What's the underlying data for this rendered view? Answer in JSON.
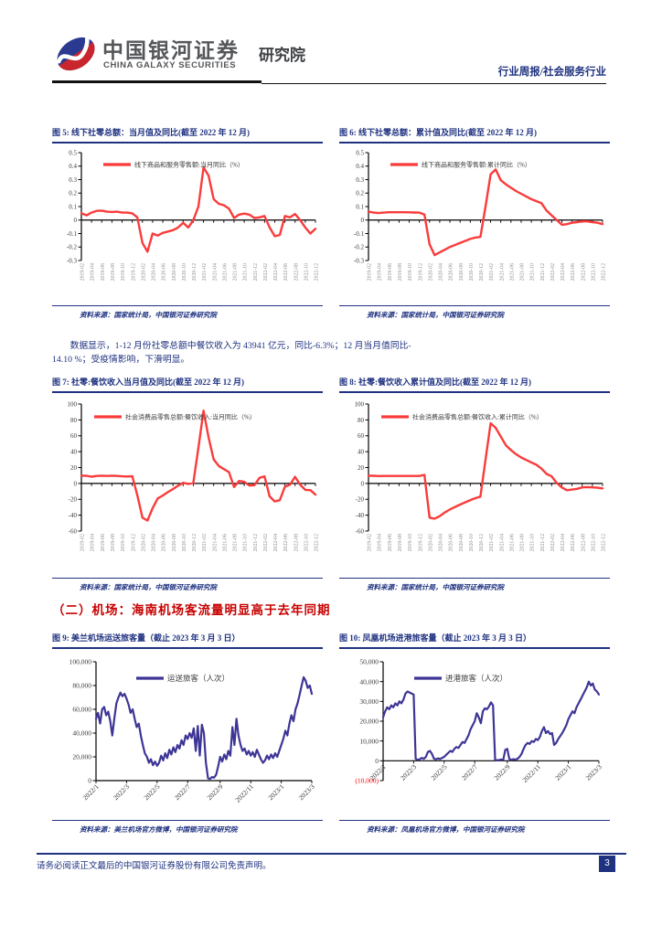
{
  "header": {
    "brand_cn": "中国银河证券",
    "brand_en": "CHINA GALAXY SECURITIES",
    "brand_suffix": "研究院",
    "report_type": "行业周报/社会服务行业"
  },
  "paragraph": {
    "lines": [
      "数据显示，1-12 月份社零总额中餐饮收入为 43941 亿元，同比-6.3%；12 月当月值同比-",
      "14.10 %；受疫情影响，下滑明显。"
    ]
  },
  "section_heading": "（二）机场：海南机场客流量明显高于去年同期",
  "footer": {
    "disclaimer": "请务必阅读正文最后的中国银河证券股份有限公司免责声明。",
    "page_number": "3"
  },
  "colors": {
    "navy": "#1F3280",
    "heading_red": "#C80000",
    "red_line": "#FA3B3B",
    "blue_line": "#3D3595",
    "axis_gray": "#8a8a8a"
  },
  "chart_data": [
    {
      "type": "line",
      "title": "图 5: 线下社零总额：当月值及同比(截至 2022 年 12 月)",
      "legend": "线下商品和服务零售额:当月同比（%）",
      "source": "资料来源：国家统计局，中国银河证券研究院",
      "line_color": "#FA3B3B",
      "ylim": [
        -0.3,
        0.5
      ],
      "y_ticks": [
        {
          "label": "0.5",
          "value": 0.5
        },
        {
          "label": "0.4",
          "value": 0.4
        },
        {
          "label": "0.3",
          "value": 0.3
        },
        {
          "label": "0.2",
          "value": 0.2
        },
        {
          "label": "0.1",
          "value": 0.1
        },
        {
          "label": "0",
          "value": 0
        },
        {
          "label": "-0.1",
          "value": -0.1
        },
        {
          "label": "-0.2",
          "value": -0.2
        },
        {
          "label": "-0.3",
          "value": -0.3
        }
      ],
      "x_ticks": {
        "labels": [
          "2019-02",
          "2019-04",
          "2019-06",
          "2019-08",
          "2019-10",
          "2019-12",
          "2020-02",
          "2020-04",
          "2020-06",
          "2020-08",
          "2020-10",
          "2020-12",
          "2021-02",
          "2021-04",
          "2021-06",
          "2021-08",
          "2021-10",
          "2021-12",
          "2022-02",
          "2022-04",
          "2022-06",
          "2022-08",
          "2022-10",
          "2022-12"
        ],
        "indices": [
          0,
          2,
          4,
          6,
          8,
          10,
          12,
          14,
          16,
          18,
          20,
          22,
          24,
          26,
          28,
          30,
          32,
          34,
          36,
          38,
          40,
          42,
          44,
          46
        ]
      },
      "x_range": "monthly 2019-02 to 2022-12",
      "values": [
        0.051,
        0.035,
        0.055,
        0.068,
        0.07,
        0.062,
        0.06,
        0.062,
        0.055,
        0.055,
        0.05,
        0.02,
        -0.17,
        -0.235,
        -0.1,
        -0.115,
        -0.095,
        -0.085,
        -0.075,
        -0.055,
        -0.02,
        -0.055,
        0.0,
        0.1,
        0.39,
        0.33,
        0.155,
        0.12,
        0.11,
        0.085,
        0.015,
        0.04,
        0.048,
        0.04,
        0.015,
        0.02,
        0.03,
        -0.055,
        -0.12,
        -0.11,
        0.03,
        0.02,
        0.045,
        0.0,
        -0.055,
        -0.1,
        -0.065
      ]
    },
    {
      "type": "line",
      "title": "图 6: 线下社零总额：累计值及同比(截至 2022 年 12 月)",
      "legend": "线下商品和服务零售额:累计同比（%）",
      "source": "资料来源：国家统计局，中国银河证券研究院",
      "line_color": "#FA3B3B",
      "ylim": [
        -0.3,
        0.5
      ],
      "y_ticks": [
        {
          "label": "0.5",
          "value": 0.5
        },
        {
          "label": "0.4",
          "value": 0.4
        },
        {
          "label": "0.3",
          "value": 0.3
        },
        {
          "label": "0.2",
          "value": 0.2
        },
        {
          "label": "0.1",
          "value": 0.1
        },
        {
          "label": "0",
          "value": 0
        },
        {
          "label": "-0.1",
          "value": -0.1
        },
        {
          "label": "-0.2",
          "value": -0.2
        },
        {
          "label": "-0.3",
          "value": -0.3
        }
      ],
      "x_ticks": {
        "labels": [
          "2019-02",
          "2019-04",
          "2019-06",
          "2019-08",
          "2019-10",
          "2019-12",
          "2020-02",
          "2020-04",
          "2020-06",
          "2020-08",
          "2020-10",
          "2020-12",
          "2021-02",
          "2021-04",
          "2021-06",
          "2021-08",
          "2021-10",
          "2021-12",
          "2022-02",
          "2022-04",
          "2022-06",
          "2022-08",
          "2022-10",
          "2022-12"
        ],
        "indices": [
          0,
          2,
          4,
          6,
          8,
          10,
          12,
          14,
          16,
          18,
          20,
          22,
          24,
          26,
          28,
          30,
          32,
          34,
          36,
          38,
          40,
          42,
          44,
          46
        ]
      },
      "x_range": "monthly 2019-02 to 2022-12",
      "values": [
        0.062,
        0.055,
        0.052,
        0.055,
        0.058,
        0.058,
        0.058,
        0.058,
        0.057,
        0.056,
        0.055,
        0.04,
        -0.18,
        -0.26,
        -0.24,
        -0.22,
        -0.2,
        -0.185,
        -0.17,
        -0.155,
        -0.14,
        -0.13,
        -0.125,
        0.1,
        0.34,
        0.375,
        0.295,
        0.265,
        0.24,
        0.215,
        0.195,
        0.175,
        0.155,
        0.14,
        0.125,
        0.07,
        0.035,
        0.0,
        -0.035,
        -0.03,
        -0.02,
        -0.015,
        -0.01,
        -0.01,
        -0.015,
        -0.02,
        -0.03
      ]
    },
    {
      "type": "line",
      "title": "图 7: 社零:餐饮收入当月值及同比(截至 2022 年 12 月)",
      "legend": "社会消费品零售总额:餐饮收入:当月同比（%）",
      "source": "资料来源：国家统计局，中国银河证券研究院",
      "line_color": "#FA3B3B",
      "ylim": [
        -60,
        100
      ],
      "y_ticks": [
        {
          "label": "100",
          "value": 100
        },
        {
          "label": "80",
          "value": 80
        },
        {
          "label": "60",
          "value": 60
        },
        {
          "label": "40",
          "value": 40
        },
        {
          "label": "20",
          "value": 20
        },
        {
          "label": "0",
          "value": 0
        },
        {
          "label": "-20",
          "value": -20
        },
        {
          "label": "-40",
          "value": -40
        },
        {
          "label": "-60",
          "value": -60
        }
      ],
      "x_ticks": {
        "labels": [
          "2019-02",
          "2019-04",
          "2019-06",
          "2019-08",
          "2019-10",
          "2019-12",
          "2020-02",
          "2020-04",
          "2020-06",
          "2020-08",
          "2020-10",
          "2020-12",
          "2021-02",
          "2021-04",
          "2021-06",
          "2021-08",
          "2021-10",
          "2021-12",
          "2022-02",
          "2022-04",
          "2022-06",
          "2022-08",
          "2022-10",
          "2022-12"
        ],
        "indices": [
          0,
          2,
          4,
          6,
          8,
          10,
          12,
          14,
          16,
          18,
          20,
          22,
          24,
          26,
          28,
          30,
          32,
          34,
          36,
          38,
          40,
          42,
          44,
          46
        ]
      },
      "x_range": "monthly 2019-02 to 2022-12",
      "values": [
        9.7,
        9.6,
        8.5,
        9.4,
        9.8,
        9.4,
        9.7,
        9.4,
        9.0,
        8.7,
        9.1,
        -15,
        -43.1,
        -46.8,
        -31.1,
        -18.9,
        -15.2,
        -11.0,
        -7.0,
        -2.9,
        0.8,
        -0.6,
        0.4,
        45,
        91.6,
        58,
        30.3,
        22,
        18,
        14.3,
        -4.5,
        3.1,
        2.0,
        -2.7,
        -2.2,
        7,
        8.9,
        -16.4,
        -22.7,
        -21.1,
        -4.0,
        -1.5,
        8.4,
        -1.7,
        -8.1,
        -8.4,
        -14.1
      ]
    },
    {
      "type": "line",
      "title": "图 8: 社零:餐饮收入累计值及同比(截至 2022 年 12 月)",
      "legend": "社会消费品零售总额:餐饮收入:累计同比（%）",
      "source": "资料来源：国家统计局，中国银河证券研究院",
      "line_color": "#FA3B3B",
      "ylim": [
        -60,
        100
      ],
      "y_ticks": [
        {
          "label": "100",
          "value": 100
        },
        {
          "label": "80",
          "value": 80
        },
        {
          "label": "60",
          "value": 60
        },
        {
          "label": "40",
          "value": 40
        },
        {
          "label": "20",
          "value": 20
        },
        {
          "label": "0",
          "value": 0
        },
        {
          "label": "-20",
          "value": -20
        },
        {
          "label": "-40",
          "value": -40
        },
        {
          "label": "-60",
          "value": -60
        }
      ],
      "x_ticks": {
        "labels": [
          "2019-02",
          "2019-04",
          "2019-06",
          "2019-08",
          "2019-10",
          "2019-12",
          "2020-02",
          "2020-04",
          "2020-06",
          "2020-08",
          "2020-10",
          "2020-12",
          "2021-02",
          "2021-04",
          "2021-06",
          "2021-08",
          "2021-10",
          "2021-12",
          "2022-02",
          "2022-04",
          "2022-06",
          "2022-08",
          "2022-10",
          "2022-12"
        ],
        "indices": [
          0,
          2,
          4,
          6,
          8,
          10,
          12,
          14,
          16,
          18,
          20,
          22,
          24,
          26,
          28,
          30,
          32,
          34,
          36,
          38,
          40,
          42,
          44,
          46
        ]
      },
      "x_range": "monthly 2019-02 to 2022-12",
      "values": [
        9.7,
        9.6,
        9.3,
        9.4,
        9.4,
        9.4,
        9.4,
        9.4,
        9.4,
        9.4,
        9.4,
        10.8,
        -43.1,
        -44.3,
        -41.2,
        -36.5,
        -32.8,
        -29.6,
        -26.6,
        -23.9,
        -21.0,
        -18.6,
        -16.6,
        30,
        75.8,
        70,
        59.0,
        48.0,
        42.0,
        36.8,
        32.7,
        29.5,
        26.5,
        23.5,
        18.6,
        12,
        8.9,
        0.5,
        -5.1,
        -8.5,
        -7.7,
        -6.8,
        -5.0,
        -4.6,
        -5.0,
        -5.4,
        -6.3
      ]
    },
    {
      "type": "line",
      "title": "图 9: 美兰机场运送旅客量（截止 2023 年 3 月 3 日）",
      "legend": "运送旅客（人次）",
      "source": "资料来源：美兰机场官方微博，中国银河证券研究院",
      "line_color": "#3D3595",
      "ylim": [
        0,
        100000
      ],
      "y_ticks": [
        {
          "label": "100,000",
          "value": 100000
        },
        {
          "label": "80,000",
          "value": 80000
        },
        {
          "label": "60,000",
          "value": 60000
        },
        {
          "label": "40,000",
          "value": 40000
        },
        {
          "label": "20,000",
          "value": 20000
        },
        {
          "label": "0",
          "value": 0
        }
      ],
      "x_ticks": {
        "labels": [
          "2022/1",
          "2022/3",
          "2022/5",
          "2022/7",
          "2022/9",
          "2022/11",
          "2023/1",
          "2023/3"
        ],
        "indices": [
          0,
          15,
          30,
          45,
          61,
          76,
          91,
          106
        ]
      },
      "x_range": "daily 2022/1/1 to 2023/3/3 (approx. 4-day sampling)",
      "values": [
        52000,
        57000,
        48000,
        60000,
        62000,
        55000,
        58000,
        50000,
        38000,
        52000,
        65000,
        70000,
        74000,
        71000,
        73000,
        69000,
        64000,
        57000,
        60000,
        52000,
        45000,
        48000,
        38000,
        30000,
        23000,
        20000,
        15000,
        18000,
        13000,
        16000,
        12500,
        15000,
        21000,
        17000,
        23000,
        19000,
        26000,
        22000,
        28000,
        24000,
        30000,
        27000,
        34000,
        30000,
        38000,
        35000,
        40000,
        36000,
        44000,
        25000,
        46000,
        21000,
        47000,
        40000,
        15000,
        2000,
        1500,
        3000,
        2500,
        5000,
        12000,
        20000,
        16000,
        22000,
        18000,
        25000,
        21000,
        45000,
        30000,
        52000,
        38000,
        30000,
        25000,
        27000,
        22000,
        25000,
        21000,
        24000,
        20000,
        26000,
        22000,
        18000,
        15000,
        17000,
        21000,
        18000,
        22000,
        19000,
        23000,
        20000,
        25000,
        30000,
        35000,
        42000,
        38000,
        48000,
        55000,
        50000,
        60000,
        65000,
        72000,
        80000,
        87000,
        84000,
        78000,
        80000,
        73000
      ]
    },
    {
      "type": "line",
      "title": "图 10: 凤凰机场进港旅客量（截止 2023 年 3 月 3 日）",
      "legend": "进港旅客（人次）",
      "source": "资料来源：凤凰机场官方微博，中国银河证券研究院",
      "line_color": "#3D3595",
      "ylim": [
        -10000,
        50000
      ],
      "y_ticks": [
        {
          "label": "50,000",
          "value": 50000
        },
        {
          "label": "40,000",
          "value": 40000
        },
        {
          "label": "30,000",
          "value": 30000
        },
        {
          "label": "20,000",
          "value": 20000
        },
        {
          "label": "10,000",
          "value": 10000
        },
        {
          "label": "0",
          "value": 0
        },
        {
          "label": "(10,000)",
          "value": -10000,
          "color": "#FF0000"
        }
      ],
      "x_ticks": {
        "labels": [
          "2022/1",
          "2022/3",
          "2022/5",
          "2022/7",
          "2022/9",
          "2022/11",
          "2023/1",
          "2023/3"
        ],
        "indices": [
          0,
          15,
          30,
          45,
          61,
          76,
          91,
          106
        ]
      },
      "x_range": "daily 2022/1/1 to 2023/3/3 (approx. 4-day sampling)",
      "values": [
        22000,
        25000,
        27000,
        26000,
        28000,
        27000,
        29000,
        28000,
        30000,
        29000,
        31000,
        34000,
        35000,
        34500,
        34000,
        33500,
        1000,
        500,
        800,
        1500,
        1000,
        2000,
        4500,
        5000,
        3500,
        1000,
        800,
        1200,
        900,
        1500,
        2000,
        3000,
        4000,
        5000,
        4500,
        6000,
        7000,
        6500,
        8000,
        9500,
        9000,
        11000,
        13000,
        16000,
        18000,
        20000,
        24000,
        22000,
        19000,
        25000,
        26500,
        26000,
        27500,
        29500,
        28000,
        500,
        300,
        400,
        600,
        500,
        5500,
        6000,
        1000,
        500,
        800,
        600,
        1000,
        2000,
        3500,
        6000,
        8000,
        9000,
        8500,
        10000,
        9500,
        11000,
        10500,
        12000,
        15000,
        17000,
        14000,
        15000,
        13500,
        14000,
        8000,
        9000,
        11000,
        12500,
        14000,
        16000,
        18000,
        21000,
        23000,
        25000,
        24000,
        27000,
        29000,
        31000,
        33000,
        35000,
        37000,
        40000,
        38000,
        39000,
        36000,
        35000,
        33500
      ]
    }
  ]
}
